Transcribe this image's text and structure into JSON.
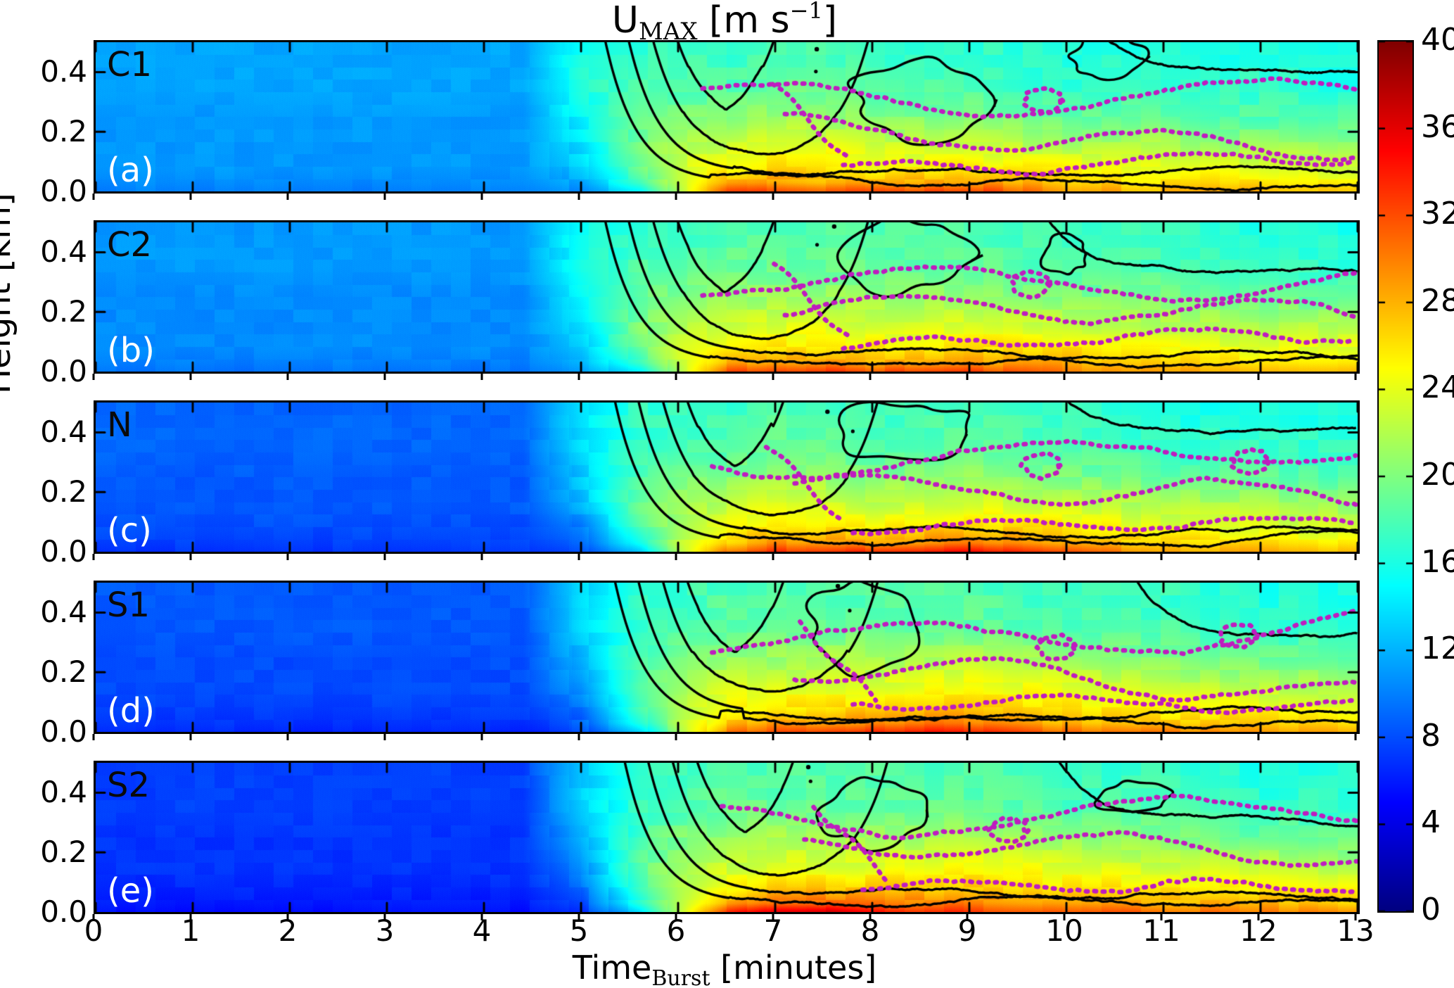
{
  "chart_data": {
    "type": "heatmap",
    "title": {
      "main": "U",
      "sub": "MAX",
      "unit_pre": " [m s",
      "unit_sup": "−1",
      "unit_post": "]"
    },
    "xlabel": {
      "main": "Time",
      "sub": "Burst",
      "post": " [minutes]"
    },
    "ylabel": "Height [km]",
    "x_range": [
      0,
      13
    ],
    "y_range": [
      0.0,
      0.5
    ],
    "x_ticks": [
      "0",
      "1",
      "2",
      "3",
      "4",
      "5",
      "6",
      "7",
      "8",
      "9",
      "10",
      "11",
      "12",
      "13"
    ],
    "y_ticks": [
      {
        "value": 0.4,
        "label": "0.4"
      },
      {
        "value": 0.2,
        "label": "0.2"
      },
      {
        "value": 0.0,
        "label": "0.0"
      }
    ],
    "colorbar": {
      "range": [
        0,
        40
      ],
      "colormap": "jet",
      "ticks": [
        "0",
        "4",
        "8",
        "12",
        "16",
        "20",
        "24",
        "28",
        "32",
        "36",
        "40"
      ]
    },
    "overlays": {
      "black_contours": {
        "color": "#000000",
        "style": "solid"
      },
      "magenta_contours": {
        "color": "#bf1cbf",
        "style": "dotted"
      }
    },
    "panels": [
      {
        "id": "a",
        "label": "C1",
        "sublabel": "(a)",
        "burst_arrival_min": 4.8,
        "grid": {
          "t": [
            0,
            4.4,
            5.0,
            5.6,
            6.0,
            6.5,
            7.0,
            7.5,
            8.0,
            9.0,
            10.0,
            11.0,
            12.0,
            13.0
          ],
          "h": [
            0.0,
            0.03,
            0.08,
            0.15,
            0.25,
            0.35,
            0.5
          ],
          "u": [
            [
              10.0,
              10.0,
              11.0,
              14.0,
              22.0,
              32.0,
              33.0,
              32.0,
              32.0,
              33.0,
              29.0,
              28.0,
              28.0,
              27.0
            ],
            [
              10.5,
              10.5,
              12.0,
              17.0,
              23.0,
              28.0,
              29.0,
              28.0,
              28.0,
              29.0,
              27.0,
              26.0,
              26.0,
              25.0
            ],
            [
              11.0,
              11.0,
              13.0,
              19.0,
              23.0,
              25.0,
              26.0,
              26.0,
              25.0,
              26.0,
              25.0,
              24.0,
              24.0,
              23.0
            ],
            [
              11.0,
              11.0,
              14.0,
              20.0,
              22.0,
              23.0,
              24.0,
              24.0,
              23.0,
              23.0,
              22.0,
              22.0,
              21.0,
              21.0
            ],
            [
              11.0,
              11.0,
              15.0,
              19.0,
              20.0,
              20.0,
              21.0,
              21.0,
              20.0,
              20.0,
              19.0,
              19.0,
              18.0,
              18.0
            ],
            [
              11.5,
              11.5,
              16.0,
              18.0,
              18.0,
              18.0,
              19.0,
              19.0,
              18.0,
              18.0,
              17.0,
              17.0,
              17.0,
              16.0
            ],
            [
              11.5,
              11.5,
              16.0,
              17.0,
              17.0,
              17.0,
              18.0,
              18.0,
              17.0,
              17.0,
              16.0,
              16.0,
              16.0,
              16.0
            ]
          ]
        }
      },
      {
        "id": "b",
        "label": "C2",
        "sublabel": "(b)",
        "burst_arrival_min": 4.8,
        "grid": {
          "t": [
            0,
            4.4,
            5.0,
            5.6,
            6.0,
            6.5,
            7.0,
            7.5,
            8.0,
            9.0,
            10.0,
            11.0,
            12.0,
            13.0
          ],
          "h": [
            0.0,
            0.03,
            0.08,
            0.15,
            0.25,
            0.35,
            0.5
          ],
          "u": [
            [
              9.5,
              9.5,
              10.5,
              14.0,
              22.0,
              32.0,
              33.0,
              33.0,
              32.0,
              33.0,
              30.0,
              29.0,
              28.0,
              28.0
            ],
            [
              10.0,
              10.0,
              11.5,
              17.0,
              23.0,
              28.0,
              29.0,
              29.0,
              28.0,
              29.0,
              28.0,
              27.0,
              26.0,
              26.0
            ],
            [
              10.5,
              10.5,
              12.5,
              19.0,
              23.0,
              25.0,
              26.0,
              26.0,
              26.0,
              26.0,
              26.0,
              25.0,
              24.0,
              24.0
            ],
            [
              10.5,
              10.5,
              13.5,
              20.0,
              22.0,
              23.0,
              24.0,
              24.0,
              23.0,
              24.0,
              23.0,
              22.0,
              22.0,
              22.0
            ],
            [
              10.5,
              10.5,
              14.5,
              19.0,
              20.0,
              21.0,
              21.0,
              21.0,
              21.0,
              21.0,
              20.0,
              20.0,
              19.0,
              19.0
            ],
            [
              11.0,
              11.0,
              15.5,
              18.0,
              18.0,
              19.0,
              19.0,
              19.0,
              19.0,
              19.0,
              18.0,
              18.0,
              17.0,
              17.0
            ],
            [
              11.0,
              11.0,
              15.5,
              17.0,
              17.0,
              18.0,
              18.0,
              18.0,
              18.0,
              18.0,
              17.0,
              17.0,
              16.0,
              16.0
            ]
          ]
        }
      },
      {
        "id": "c",
        "label": "N",
        "sublabel": "(c)",
        "burst_arrival_min": 4.9,
        "grid": {
          "t": [
            0,
            4.4,
            5.0,
            5.6,
            6.0,
            6.5,
            7.0,
            7.5,
            8.0,
            9.0,
            10.0,
            11.0,
            12.0,
            13.0
          ],
          "h": [
            0.0,
            0.03,
            0.08,
            0.15,
            0.25,
            0.35,
            0.5
          ],
          "u": [
            [
              7.0,
              7.0,
              8.0,
              13.0,
              21.0,
              31.0,
              33.0,
              33.0,
              34.0,
              35.0,
              32.0,
              29.0,
              28.0,
              27.0
            ],
            [
              7.5,
              7.5,
              9.0,
              16.0,
              22.0,
              27.0,
              29.0,
              29.0,
              29.0,
              30.0,
              28.0,
              27.0,
              26.0,
              25.0
            ],
            [
              8.0,
              8.0,
              10.0,
              18.0,
              22.0,
              25.0,
              26.0,
              26.0,
              26.0,
              27.0,
              26.0,
              24.0,
              24.0,
              23.0
            ],
            [
              8.5,
              8.5,
              12.0,
              19.0,
              21.0,
              23.0,
              24.0,
              24.0,
              23.0,
              24.0,
              23.0,
              22.0,
              22.0,
              21.0
            ],
            [
              8.5,
              8.5,
              13.0,
              18.0,
              20.0,
              20.0,
              21.0,
              21.0,
              20.0,
              21.0,
              20.0,
              19.0,
              19.0,
              18.0
            ],
            [
              9.0,
              9.0,
              14.0,
              17.0,
              18.0,
              18.0,
              19.0,
              19.0,
              18.0,
              19.0,
              18.0,
              17.0,
              17.0,
              17.0
            ],
            [
              9.0,
              9.0,
              14.0,
              17.0,
              17.0,
              17.0,
              18.0,
              18.0,
              17.0,
              18.0,
              17.0,
              16.0,
              16.0,
              16.0
            ]
          ]
        }
      },
      {
        "id": "d",
        "label": "S1",
        "sublabel": "(d)",
        "burst_arrival_min": 4.9,
        "grid": {
          "t": [
            0,
            4.4,
            5.0,
            5.6,
            6.0,
            6.5,
            7.0,
            7.5,
            8.0,
            9.0,
            10.0,
            11.0,
            12.0,
            13.0
          ],
          "h": [
            0.0,
            0.03,
            0.08,
            0.15,
            0.25,
            0.35,
            0.5
          ],
          "u": [
            [
              6.5,
              6.5,
              7.5,
              13.0,
              21.0,
              30.0,
              32.0,
              33.0,
              34.0,
              34.0,
              31.0,
              30.0,
              29.0,
              28.0
            ],
            [
              7.0,
              7.0,
              8.5,
              16.0,
              22.0,
              27.0,
              29.0,
              29.0,
              30.0,
              30.0,
              28.0,
              27.0,
              27.0,
              26.0
            ],
            [
              7.5,
              7.5,
              9.5,
              18.0,
              22.0,
              25.0,
              26.0,
              26.0,
              27.0,
              27.0,
              26.0,
              25.0,
              25.0,
              24.0
            ],
            [
              8.0,
              8.0,
              11.0,
              19.0,
              21.0,
              23.0,
              24.0,
              24.0,
              24.0,
              25.0,
              24.0,
              23.0,
              22.0,
              22.0
            ],
            [
              8.0,
              8.0,
              12.5,
              18.0,
              20.0,
              21.0,
              21.0,
              22.0,
              21.0,
              22.0,
              21.0,
              20.0,
              19.0,
              19.0
            ],
            [
              8.5,
              8.5,
              13.5,
              17.0,
              18.0,
              19.0,
              19.0,
              19.0,
              19.0,
              19.0,
              18.0,
              18.0,
              17.0,
              17.0
            ],
            [
              8.5,
              8.5,
              13.5,
              17.0,
              17.0,
              18.0,
              18.0,
              18.0,
              18.0,
              18.0,
              17.0,
              17.0,
              16.0,
              16.0
            ]
          ]
        }
      },
      {
        "id": "e",
        "label": "S2",
        "sublabel": "(e)",
        "burst_arrival_min": 5.0,
        "grid": {
          "t": [
            0,
            4.4,
            5.0,
            5.6,
            6.0,
            6.5,
            7.0,
            7.5,
            8.0,
            9.0,
            10.0,
            11.0,
            12.0,
            13.0
          ],
          "h": [
            0.0,
            0.03,
            0.08,
            0.15,
            0.25,
            0.35,
            0.5
          ],
          "u": [
            [
              5.5,
              5.5,
              7.0,
              13.0,
              22.0,
              33.0,
              37.0,
              37.0,
              34.0,
              33.0,
              32.0,
              31.0,
              30.0,
              30.0
            ],
            [
              6.0,
              6.0,
              8.0,
              16.0,
              22.0,
              28.0,
              31.0,
              31.0,
              30.0,
              30.0,
              29.0,
              28.0,
              28.0,
              27.0
            ],
            [
              6.5,
              6.5,
              9.0,
              18.0,
              22.0,
              25.0,
              27.0,
              27.0,
              27.0,
              27.0,
              26.0,
              26.0,
              25.0,
              25.0
            ],
            [
              7.0,
              7.0,
              10.5,
              19.0,
              21.0,
              23.0,
              24.0,
              24.0,
              24.0,
              25.0,
              24.0,
              23.0,
              23.0,
              22.0
            ],
            [
              7.0,
              7.0,
              12.0,
              18.0,
              20.0,
              21.0,
              22.0,
              22.0,
              21.0,
              22.0,
              21.0,
              20.0,
              19.0,
              19.0
            ],
            [
              7.5,
              7.5,
              13.0,
              17.0,
              18.0,
              19.0,
              19.0,
              19.0,
              19.0,
              19.0,
              18.0,
              18.0,
              17.0,
              17.0
            ],
            [
              7.5,
              7.5,
              13.0,
              17.0,
              17.0,
              18.0,
              18.0,
              18.0,
              18.0,
              18.0,
              17.0,
              17.0,
              16.0,
              17.0
            ]
          ]
        }
      }
    ]
  }
}
